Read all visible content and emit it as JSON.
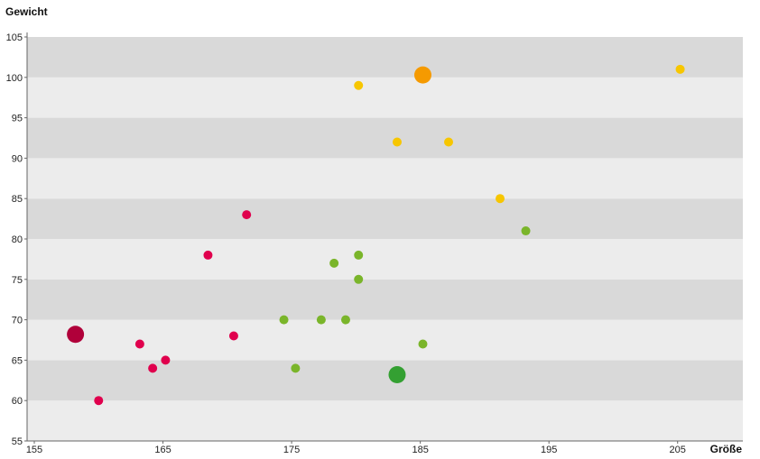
{
  "chart_data": {
    "type": "scatter",
    "xlabel": "Größe",
    "ylabel": "Gewicht",
    "xlim": [
      155,
      210
    ],
    "ylim": [
      55,
      105
    ],
    "x_ticks": [
      155,
      165,
      175,
      185,
      195,
      205
    ],
    "y_ticks": [
      55,
      60,
      65,
      70,
      75,
      80,
      85,
      90,
      95,
      100,
      105
    ],
    "grid": "alternating horizontal bands",
    "band_colors": [
      "#ececec",
      "#d9d9d9"
    ],
    "series": [
      {
        "color": "#e0004d",
        "highlight_color": "#b0003a",
        "points": [
          {
            "x": 158.2,
            "y": 68.2,
            "highlight": true
          },
          {
            "x": 160.0,
            "y": 60.0
          },
          {
            "x": 163.2,
            "y": 67.0
          },
          {
            "x": 164.2,
            "y": 64.0
          },
          {
            "x": 165.2,
            "y": 65.0
          },
          {
            "x": 168.5,
            "y": 78.0
          },
          {
            "x": 170.5,
            "y": 68.0
          },
          {
            "x": 171.5,
            "y": 83.0
          }
        ]
      },
      {
        "color": "#7ab52a",
        "highlight_color": "#34a032",
        "points": [
          {
            "x": 174.4,
            "y": 70.0
          },
          {
            "x": 175.3,
            "y": 64.0
          },
          {
            "x": 177.3,
            "y": 70.0
          },
          {
            "x": 178.3,
            "y": 77.0
          },
          {
            "x": 179.2,
            "y": 70.0
          },
          {
            "x": 180.2,
            "y": 78.0
          },
          {
            "x": 180.2,
            "y": 75.0
          },
          {
            "x": 183.2,
            "y": 63.2,
            "highlight": true
          },
          {
            "x": 185.2,
            "y": 67.0
          },
          {
            "x": 193.2,
            "y": 81.0
          }
        ]
      },
      {
        "color": "#f7c600",
        "highlight_color": "#f59a00",
        "points": [
          {
            "x": 180.2,
            "y": 99.0
          },
          {
            "x": 183.2,
            "y": 92.0
          },
          {
            "x": 185.2,
            "y": 100.3,
            "highlight": true
          },
          {
            "x": 187.2,
            "y": 92.0
          },
          {
            "x": 191.2,
            "y": 85.0
          },
          {
            "x": 205.2,
            "y": 101.0
          }
        ]
      }
    ]
  }
}
